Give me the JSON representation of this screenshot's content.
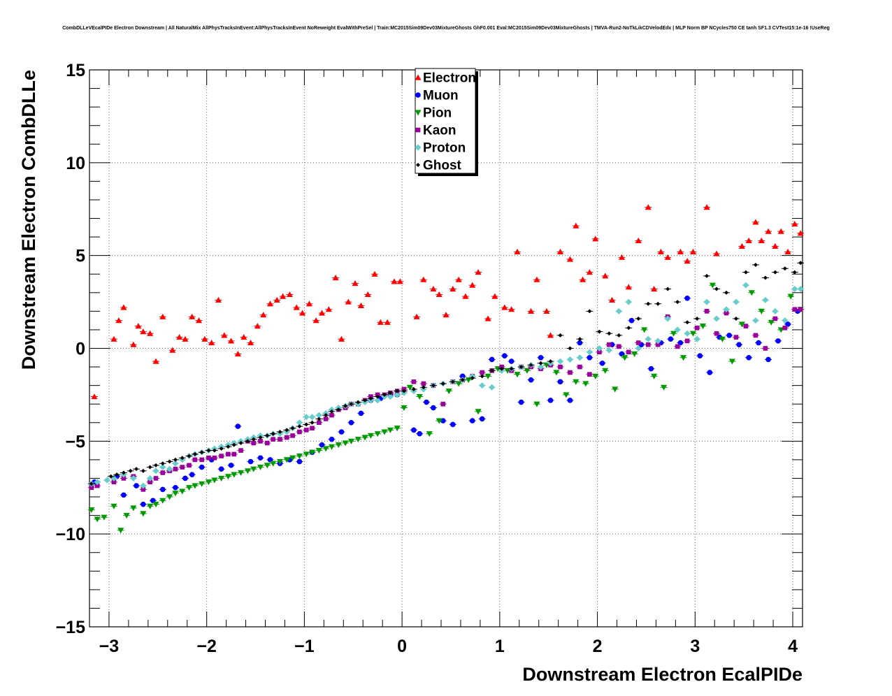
{
  "chart_data": {
    "type": "scatter",
    "title": "CombDLLeVEcalPIDe Electron Downstream | All NaturalMix AllPhysTracksInEvent:AllPhysTracksInEvent NoReweight EvalWithPreSel | Train:MC2015Sim09Dev03MixtureGhosts GhF0.001 Eval:MC2015Sim09Dev03MixtureGhosts | TMVA-Run2-NoTkLikCDVelodEdx | MLP Norm BP NCycles750 CE tanh SF1.3 CVTest15:1e-16 !UseReg",
    "xlabel": "Downstream Electron EcalPIDe",
    "ylabel": "Downstream Electron CombDLLe",
    "xlim": [
      -3.2,
      4.1
    ],
    "ylim": [
      -15,
      15
    ],
    "xticks": [
      -3,
      -2,
      -1,
      0,
      1,
      2,
      3,
      4
    ],
    "xtick_labels": [
      "−3",
      "−2",
      "−1",
      "0",
      "1",
      "2",
      "3",
      "4"
    ],
    "yticks": [
      -15,
      -10,
      -5,
      0,
      5,
      10,
      15
    ],
    "ytick_labels": [
      "−15",
      "−10",
      "−5",
      "0",
      "5",
      "10",
      "15"
    ],
    "grid": true,
    "legend_position": "top-center",
    "series": [
      {
        "name": "Electron",
        "color": "#ff0000",
        "marker": "triangle-up",
        "x": [
          -3.15,
          -2.95,
          -2.9,
          -2.85,
          -2.75,
          -2.7,
          -2.65,
          -2.58,
          -2.52,
          -2.45,
          -2.35,
          -2.28,
          -2.22,
          -2.15,
          -2.08,
          -2.02,
          -1.95,
          -1.88,
          -1.82,
          -1.75,
          -1.68,
          -1.62,
          -1.55,
          -1.48,
          -1.42,
          -1.35,
          -1.28,
          -1.22,
          -1.15,
          -1.08,
          -1.02,
          -0.95,
          -0.88,
          -0.82,
          -0.75,
          -0.68,
          -0.62,
          -0.55,
          -0.48,
          -0.42,
          -0.35,
          -0.28,
          -0.22,
          -0.15,
          -0.08,
          -0.02,
          0.15,
          0.22,
          0.32,
          0.38,
          0.45,
          0.52,
          0.58,
          0.65,
          0.72,
          0.78,
          0.88,
          0.95,
          1.05,
          1.12,
          1.18,
          1.32,
          1.38,
          1.48,
          1.52,
          1.62,
          1.72,
          1.78,
          1.85,
          1.92,
          1.98,
          2.08,
          2.15,
          2.25,
          2.32,
          2.42,
          2.52,
          2.58,
          2.65,
          2.72,
          2.85,
          2.92,
          2.98,
          3.12,
          3.22,
          3.48,
          3.55,
          3.62,
          3.68,
          3.75,
          3.82,
          3.88,
          3.95,
          4.02,
          4.08
        ],
        "y": [
          -2.6,
          0.5,
          1.5,
          2.2,
          0.2,
          1.2,
          0.9,
          0.8,
          -0.7,
          1.7,
          -0.1,
          0.6,
          0.5,
          1.7,
          1.5,
          0.5,
          0.3,
          2.6,
          0.7,
          0.4,
          -0.3,
          0.6,
          0.3,
          1.2,
          1.8,
          2.4,
          2.6,
          2.8,
          2.9,
          2.2,
          1.9,
          2.4,
          1.5,
          1.9,
          2.1,
          3.8,
          0.5,
          2.5,
          3.5,
          2.3,
          2.9,
          4.0,
          1.4,
          1.4,
          3.6,
          3.6,
          1.7,
          3.7,
          3.2,
          2.9,
          1.8,
          3.2,
          3.7,
          2.8,
          3.4,
          4.1,
          1.6,
          2.8,
          2.2,
          2.1,
          5.2,
          2.0,
          3.7,
          2.0,
          0.7,
          5.2,
          4.8,
          6.6,
          3.7,
          4.1,
          5.9,
          3.9,
          2.6,
          4.9,
          3.3,
          5.8,
          7.6,
          3.2,
          5.2,
          4.9,
          5.2,
          4.7,
          5.2,
          7.6,
          5.1,
          5.5,
          5.8,
          6.8,
          5.8,
          6.3,
          5.5,
          6.3,
          5.2,
          6.7,
          6.2
        ]
      },
      {
        "name": "Muon",
        "color": "#0000ff",
        "marker": "circle",
        "x": [
          -3.15,
          -2.92,
          -2.85,
          -2.72,
          -2.65,
          -2.55,
          -2.45,
          -2.32,
          -2.22,
          -2.15,
          -2.05,
          -1.95,
          -1.85,
          -1.75,
          -1.68,
          -1.55,
          -1.45,
          -1.35,
          -1.25,
          -1.15,
          -1.05,
          -0.92,
          -0.82,
          -0.72,
          -0.62,
          -0.52,
          -0.42,
          -0.32,
          -0.22,
          -0.12,
          -0.05,
          0.12,
          0.18,
          0.25,
          0.32,
          0.42,
          0.52,
          0.62,
          0.72,
          0.82,
          0.92,
          1.05,
          1.12,
          1.22,
          1.32,
          1.42,
          1.52,
          1.62,
          1.72,
          1.82,
          1.92,
          2.05,
          2.15,
          2.25,
          2.35,
          2.45,
          2.55,
          2.65,
          2.75,
          2.85,
          2.92,
          3.05,
          3.15,
          3.25,
          3.35,
          3.45,
          3.55,
          3.65,
          3.75,
          3.85,
          3.95,
          4.05
        ],
        "y": [
          -7.2,
          -6.9,
          -7.9,
          -7.4,
          -8.4,
          -8.2,
          -7.6,
          -7.5,
          -7.0,
          -6.8,
          -6.4,
          -6.0,
          -6.5,
          -6.3,
          -4.2,
          -6.1,
          -5.9,
          -6.0,
          -6.2,
          -6.0,
          -6.1,
          -5.6,
          -5.2,
          -4.9,
          -4.5,
          -4.0,
          -3.5,
          -2.8,
          -2.7,
          -2.5,
          -2.5,
          -4.4,
          -4.6,
          -2.9,
          -3.2,
          -3.9,
          -4.1,
          -1.5,
          -3.9,
          -3.8,
          -0.6,
          -0.4,
          -0.7,
          -2.9,
          -1.7,
          -0.5,
          -2.8,
          -1.8,
          -2.8,
          0.3,
          -0.5,
          -0.8,
          0.2,
          -0.3,
          1.5,
          0.2,
          -1.1,
          0.3,
          0.5,
          0.3,
          2.7,
          -0.4,
          -1.3,
          0.6,
          0.7,
          0.2,
          -0.5,
          0.3,
          -0.6,
          0.4,
          1.3,
          2.0
        ]
      },
      {
        "name": "Pion",
        "color": "#009900",
        "marker": "triangle-down",
        "x": [
          -3.18,
          -3.12,
          -3.05,
          -2.95,
          -2.88,
          -2.82,
          -2.75,
          -2.65,
          -2.58,
          -2.52,
          -2.45,
          -2.38,
          -2.32,
          -2.25,
          -2.18,
          -2.12,
          -2.05,
          -1.98,
          -1.92,
          -1.85,
          -1.78,
          -1.72,
          -1.65,
          -1.58,
          -1.52,
          -1.45,
          -1.38,
          -1.32,
          -1.25,
          -1.18,
          -1.12,
          -1.05,
          -0.98,
          -0.92,
          -0.85,
          -0.78,
          -0.72,
          -0.65,
          -0.58,
          -0.52,
          -0.45,
          -0.38,
          -0.32,
          -0.25,
          -0.18,
          -0.12,
          -0.05,
          0.02,
          0.08,
          0.18,
          0.28,
          0.38,
          0.48,
          0.58,
          0.68,
          0.78,
          0.88,
          0.98,
          1.08,
          1.18,
          1.28,
          1.38,
          1.48,
          1.58,
          1.68,
          1.78,
          1.88,
          1.98,
          2.08,
          2.18,
          2.28,
          2.38,
          2.48,
          2.58,
          2.68,
          2.78,
          2.88,
          2.98,
          3.08,
          3.18,
          3.28,
          3.38,
          3.48,
          3.58,
          3.68,
          3.78,
          3.88,
          3.98,
          4.08
        ],
        "y": [
          -8.7,
          -9.2,
          -9.1,
          -8.5,
          -9.8,
          -9.0,
          -8.6,
          -8.9,
          -8.5,
          -8.4,
          -8.2,
          -8.0,
          -7.8,
          -7.7,
          -7.5,
          -7.4,
          -7.3,
          -7.2,
          -7.1,
          -7.0,
          -6.9,
          -6.8,
          -6.7,
          -6.6,
          -6.5,
          -6.4,
          -6.3,
          -6.2,
          -6.1,
          -6.0,
          -5.9,
          -5.8,
          -5.7,
          -5.6,
          -5.5,
          -5.4,
          -5.3,
          -5.2,
          -5.1,
          -5.0,
          -4.9,
          -4.8,
          -4.7,
          -4.6,
          -4.5,
          -4.4,
          -4.3,
          -3.2,
          -2.1,
          -2.6,
          -4.6,
          -3.9,
          -2.3,
          -1.9,
          -1.7,
          -3.4,
          -1.5,
          -1.1,
          -1.2,
          -1.4,
          -1.2,
          -3.0,
          -0.9,
          -1.3,
          -2.5,
          -1.8,
          -1.9,
          -1.5,
          -1.2,
          -2.2,
          -0.5,
          -0.3,
          1.0,
          -1.5,
          -2.1,
          0.8,
          -0.5,
          0.8,
          1.2,
          3.4,
          0.5,
          -0.7,
          1.3,
          3.0,
          2.0,
          1.4,
          1.0,
          2.8,
          2.1
        ]
      },
      {
        "name": "Kaon",
        "color": "#990099",
        "marker": "square",
        "x": [
          -3.18,
          -3.12,
          -2.95,
          -2.85,
          -2.75,
          -2.65,
          -2.58,
          -2.52,
          -2.45,
          -2.38,
          -2.32,
          -2.25,
          -2.18,
          -2.12,
          -2.05,
          -1.98,
          -1.92,
          -1.85,
          -1.78,
          -1.72,
          -1.65,
          -1.58,
          -1.52,
          -1.45,
          -1.38,
          -1.32,
          -1.25,
          -1.18,
          -1.12,
          -1.05,
          -0.98,
          -0.92,
          -0.85,
          -0.78,
          -0.72,
          -0.65,
          -0.58,
          -0.52,
          -0.45,
          -0.38,
          -0.32,
          -0.25,
          -0.18,
          -0.12,
          -0.05,
          0.02,
          0.12,
          0.22,
          0.32,
          0.42,
          0.52,
          0.62,
          0.72,
          0.82,
          0.92,
          1.02,
          1.12,
          1.22,
          1.32,
          1.42,
          1.52,
          1.62,
          1.72,
          1.82,
          1.92,
          2.02,
          2.12,
          2.22,
          2.32,
          2.42,
          2.52,
          2.62,
          2.72,
          2.82,
          2.92,
          3.02,
          3.12,
          3.22,
          3.32,
          3.42,
          3.52,
          3.62,
          3.72,
          3.82,
          3.92,
          4.02,
          4.08
        ],
        "y": [
          -7.5,
          -7.4,
          -7.2,
          -7.0,
          -6.9,
          -7.6,
          -7.2,
          -7.0,
          -6.7,
          -6.6,
          -6.5,
          -6.4,
          -6.3,
          -6.0,
          -6.0,
          -5.9,
          -5.9,
          -5.8,
          -5.7,
          -5.7,
          -5.5,
          -5.0,
          -5.1,
          -5.0,
          -5.1,
          -4.9,
          -4.9,
          -4.8,
          -4.7,
          -4.5,
          -4.4,
          -4.3,
          -4.0,
          -3.8,
          -3.6,
          -3.3,
          -3.2,
          -3.0,
          -3.0,
          -2.8,
          -2.6,
          -2.5,
          -2.5,
          -2.4,
          -2.3,
          -2.2,
          -1.8,
          -1.9,
          -2.0,
          -3.0,
          -1.8,
          -1.7,
          -1.5,
          -1.3,
          -1.2,
          -1.0,
          -1.2,
          -1.0,
          -1.0,
          -1.1,
          -0.9,
          -1.0,
          -1.3,
          -1.0,
          -1.4,
          -0.2,
          0.2,
          0.1,
          -0.2,
          0.3,
          0.2,
          0.2,
          1.7,
          0.1,
          0.4,
          1.1,
          2.0,
          0.8,
          1.9,
          0.6,
          1.2,
          0.7,
          0.0,
          1.6,
          1.1,
          2.1,
          2.1
        ]
      },
      {
        "name": "Proton",
        "color": "#66cccc",
        "marker": "diamond",
        "x": [
          -3.18,
          -3.12,
          -3.02,
          -2.95,
          -2.85,
          -2.75,
          -2.65,
          -2.58,
          -2.52,
          -2.45,
          -2.38,
          -2.32,
          -2.25,
          -2.18,
          -2.12,
          -2.05,
          -1.98,
          -1.92,
          -1.85,
          -1.78,
          -1.72,
          -1.65,
          -1.58,
          -1.52,
          -1.45,
          -1.38,
          -1.32,
          -1.25,
          -1.18,
          -1.12,
          -1.05,
          -0.98,
          -0.92,
          -0.85,
          -0.78,
          -0.72,
          -0.65,
          -0.58,
          -0.52,
          -0.45,
          -0.38,
          -0.32,
          -0.25,
          -0.18,
          -0.12,
          -0.05,
          0.02,
          0.12,
          0.22,
          0.32,
          0.42,
          0.52,
          0.62,
          0.72,
          0.82,
          0.92,
          1.02,
          1.12,
          1.22,
          1.32,
          1.42,
          1.52,
          1.62,
          1.72,
          1.82,
          1.92,
          2.02,
          2.12,
          2.22,
          2.32,
          2.42,
          2.52,
          2.62,
          2.72,
          2.82,
          2.92,
          3.02,
          3.12,
          3.22,
          3.32,
          3.42,
          3.52,
          3.62,
          3.72,
          3.82,
          3.92,
          4.02,
          4.08
        ],
        "y": [
          -7.3,
          -7.2,
          -7.1,
          -7.0,
          -6.8,
          -7.0,
          -7.4,
          -7.0,
          -6.6,
          -6.4,
          -6.5,
          -6.2,
          -6.0,
          -5.8,
          -5.7,
          -5.6,
          -5.5,
          -5.4,
          -5.3,
          -5.2,
          -5.1,
          -5.0,
          -4.9,
          -4.8,
          -4.7,
          -4.7,
          -4.6,
          -4.6,
          -4.5,
          -4.3,
          -4.0,
          -3.7,
          -3.7,
          -3.6,
          -3.5,
          -3.3,
          -3.2,
          -3.1,
          -3.0,
          -3.0,
          -2.9,
          -2.8,
          -2.8,
          -2.6,
          -2.6,
          -2.5,
          -2.4,
          -2.3,
          -2.2,
          -2.0,
          -1.9,
          -1.8,
          -1.7,
          -1.5,
          -2.0,
          -2.1,
          -1.2,
          -1.1,
          -1.0,
          -0.9,
          -1.0,
          -0.8,
          -0.7,
          -0.6,
          -0.5,
          -0.2,
          0.0,
          -0.1,
          2.0,
          2.5,
          0.0,
          0.5,
          0.4,
          1.6,
          1.0,
          0.8,
          0.5,
          2.5,
          1.6,
          2.1,
          2.5,
          3.4,
          1.5,
          2.6,
          2.0,
          1.5,
          3.2,
          3.2
        ]
      },
      {
        "name": "Ghost",
        "color": "#000000",
        "marker": "cross",
        "x": [
          -3.18,
          -2.98,
          -2.92,
          -2.85,
          -2.78,
          -2.72,
          -2.65,
          -2.58,
          -2.52,
          -2.45,
          -2.38,
          -2.32,
          -2.25,
          -2.18,
          -2.12,
          -2.05,
          -1.98,
          -1.92,
          -1.85,
          -1.78,
          -1.72,
          -1.65,
          -1.58,
          -1.52,
          -1.45,
          -1.38,
          -1.32,
          -1.25,
          -1.18,
          -1.12,
          -1.05,
          -0.98,
          -0.92,
          -0.85,
          -0.78,
          -0.72,
          -0.65,
          -0.58,
          -0.52,
          -0.45,
          -0.38,
          -0.32,
          -0.25,
          -0.18,
          -0.12,
          -0.05,
          0.02,
          0.12,
          0.22,
          0.32,
          0.42,
          0.52,
          0.62,
          0.72,
          0.82,
          0.92,
          1.02,
          1.12,
          1.22,
          1.32,
          1.42,
          1.52,
          1.62,
          1.72,
          1.82,
          1.92,
          2.02,
          2.12,
          2.22,
          2.32,
          2.42,
          2.52,
          2.62,
          2.72,
          2.82,
          2.92,
          3.02,
          3.12,
          3.22,
          3.32,
          3.42,
          3.52,
          3.62,
          3.72,
          3.82,
          3.92,
          4.02,
          4.08
        ],
        "y": [
          -7.3,
          -6.9,
          -6.8,
          -6.7,
          -6.6,
          -6.5,
          -6.6,
          -6.4,
          -6.3,
          -6.2,
          -6.1,
          -6.0,
          -5.9,
          -5.8,
          -5.7,
          -5.6,
          -5.5,
          -5.5,
          -5.4,
          -5.3,
          -5.2,
          -5.1,
          -5.0,
          -4.9,
          -4.8,
          -4.7,
          -4.6,
          -4.5,
          -4.4,
          -4.3,
          -4.2,
          -4.1,
          -4.0,
          -3.8,
          -3.6,
          -3.4,
          -3.3,
          -3.1,
          -3.0,
          -2.9,
          -2.8,
          -2.7,
          -2.6,
          -2.5,
          -2.4,
          -2.3,
          -2.3,
          -2.2,
          -2.1,
          -2.0,
          -1.9,
          -1.8,
          -1.7,
          -1.6,
          -1.5,
          -1.2,
          -1.1,
          -1.1,
          -1.0,
          -0.9,
          -0.8,
          -0.7,
          0.7,
          0.0,
          0.5,
          2.0,
          0.9,
          0.8,
          0.7,
          1.1,
          1.6,
          2.4,
          2.4,
          3.2,
          2.5,
          1.4,
          1.6,
          3.9,
          3.2,
          3.0,
          1.6,
          4.1,
          4.5,
          3.8,
          4.1,
          4.3,
          4.1,
          4.6
        ]
      }
    ]
  }
}
